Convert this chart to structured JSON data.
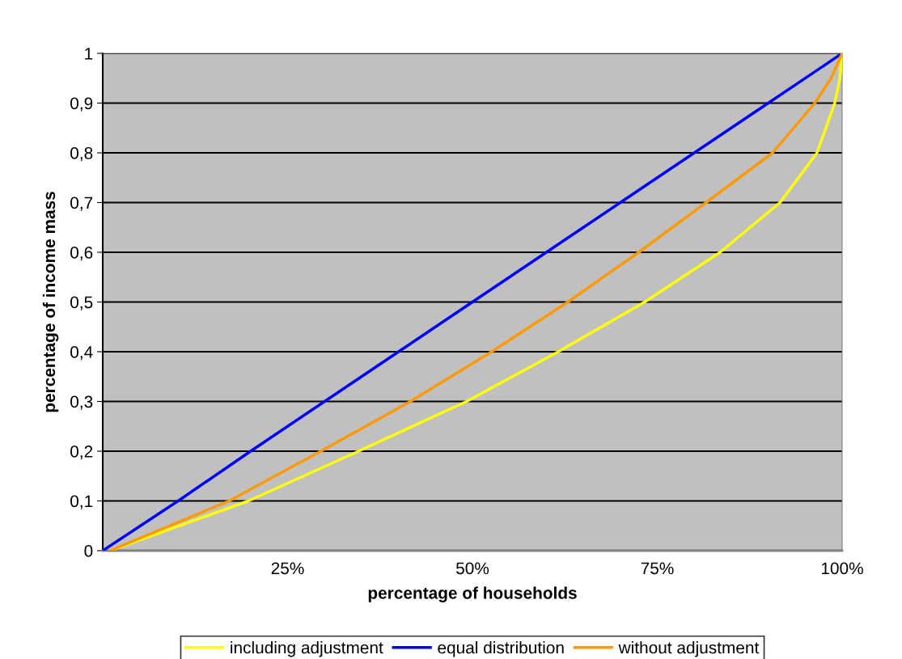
{
  "chart_data": {
    "type": "line",
    "xlabel": "percentage of households",
    "ylabel": "percentage of income mass",
    "xlim": [
      0,
      1
    ],
    "ylim": [
      0,
      1
    ],
    "xticks": [
      {
        "value": 0.25,
        "label": "25%"
      },
      {
        "value": 0.5,
        "label": "50%"
      },
      {
        "value": 0.75,
        "label": "75%"
      },
      {
        "value": 1,
        "label": "100%"
      }
    ],
    "yticks": [
      0,
      {
        "value": 0.1,
        "label": "0,1"
      },
      {
        "value": 0.2,
        "label": "0,2"
      },
      {
        "value": 0.3,
        "label": "0,3"
      },
      {
        "value": 0.4,
        "label": "0,4"
      },
      {
        "value": 0.5,
        "label": "0,5"
      },
      {
        "value": 0.6,
        "label": "0,6"
      },
      {
        "value": 0.7,
        "label": "0,7"
      },
      {
        "value": 0.8,
        "label": "0,8"
      },
      {
        "value": 0.9,
        "label": "0,9"
      },
      1
    ],
    "grid": "y",
    "legend": "bottom",
    "marker": "none",
    "line_style": "solid",
    "series": [
      {
        "name": "including adjustment",
        "color": "#ffff00",
        "x": [
          0.01,
          0.197,
          0.346,
          0.492,
          0.616,
          0.733,
          0.835,
          0.916,
          0.966,
          0.99,
          0.997,
          1
        ],
        "values": [
          0,
          0.1,
          0.2,
          0.3,
          0.4,
          0.5,
          0.6,
          0.7,
          0.8,
          0.9,
          0.95,
          1
        ]
      },
      {
        "name": "equal distribution",
        "color": "#0000ff",
        "x": [
          0,
          0.102,
          0.2,
          0.3,
          0.4,
          0.5,
          0.6,
          0.7,
          0.8,
          0.9,
          1
        ],
        "values": [
          0,
          0.1,
          0.2,
          0.3,
          0.4,
          0.5,
          0.6,
          0.7,
          0.8,
          0.9,
          1
        ]
      },
      {
        "name": "without adjustment",
        "color": "#ff9900",
        "x": [
          0.01,
          0.171,
          0.295,
          0.416,
          0.526,
          0.629,
          0.725,
          0.816,
          0.906,
          0.963,
          0.985,
          1
        ],
        "values": [
          0,
          0.1,
          0.2,
          0.3,
          0.4,
          0.5,
          0.6,
          0.7,
          0.8,
          0.9,
          0.95,
          1
        ]
      }
    ]
  }
}
